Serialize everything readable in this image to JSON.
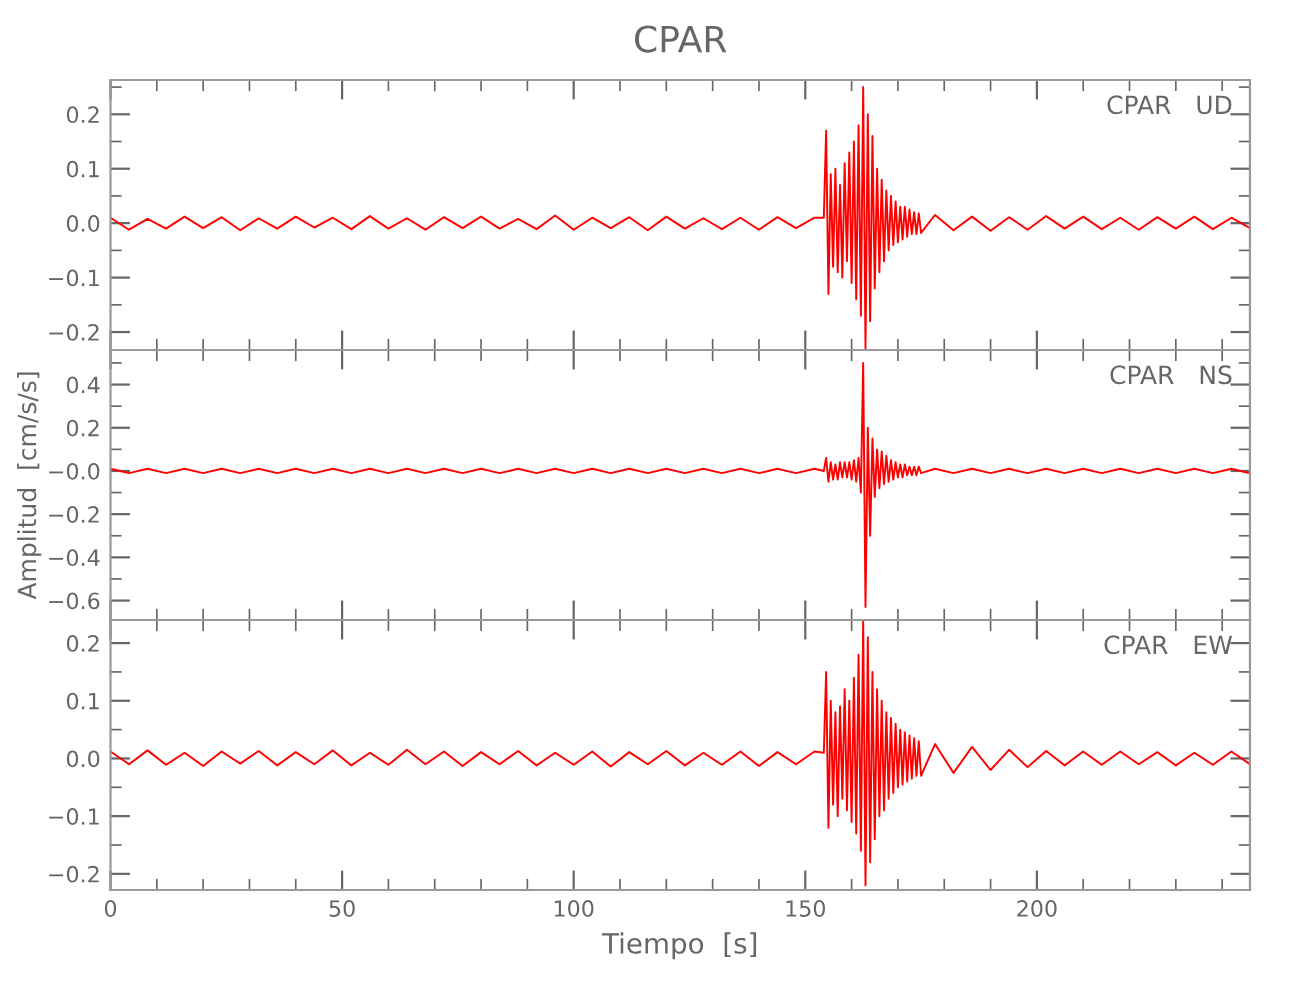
{
  "chart_data": [
    {
      "type": "line",
      "title": "CPAR",
      "annotations": [
        "CPAR   UD"
      ],
      "tick_labels": "y",
      "grid": false,
      "legend": false,
      "marker": "none",
      "line_style": "solid",
      "xlim": [
        0,
        246
      ],
      "ylim": [
        -0.233,
        0.263
      ],
      "xticks": [
        {
          "value": 0,
          "label": null
        },
        {
          "value": 10,
          "label": null
        },
        {
          "value": 20,
          "label": null
        },
        {
          "value": 30,
          "label": null
        },
        {
          "value": 40,
          "label": null
        },
        {
          "value": 50,
          "label": null
        },
        {
          "value": 60,
          "label": null
        },
        {
          "value": 70,
          "label": null
        },
        {
          "value": 80,
          "label": null
        },
        {
          "value": 90,
          "label": null
        },
        {
          "value": 100,
          "label": null
        },
        {
          "value": 110,
          "label": null
        },
        {
          "value": 120,
          "label": null
        },
        {
          "value": 130,
          "label": null
        },
        {
          "value": 140,
          "label": null
        },
        {
          "value": 150,
          "label": null
        },
        {
          "value": 160,
          "label": null
        },
        {
          "value": 170,
          "label": null
        },
        {
          "value": 180,
          "label": null
        },
        {
          "value": 190,
          "label": null
        },
        {
          "value": 200,
          "label": null
        },
        {
          "value": 210,
          "label": null
        },
        {
          "value": 220,
          "label": null
        },
        {
          "value": 230,
          "label": null
        },
        {
          "value": 240,
          "label": null
        }
      ],
      "yticks": [
        {
          "value": -0.2,
          "label": "−0.2"
        },
        {
          "value": -0.15,
          "label": null
        },
        {
          "value": -0.1,
          "label": "−0.1"
        },
        {
          "value": -0.05,
          "label": null
        },
        {
          "value": 0.0,
          "label": "0.0"
        },
        {
          "value": 0.05,
          "label": null
        },
        {
          "value": 0.1,
          "label": "0.1"
        },
        {
          "value": 0.15,
          "label": null
        },
        {
          "value": 0.2,
          "label": "0.2"
        },
        {
          "value": 0.25,
          "label": null
        }
      ],
      "series": [
        {
          "color": "#ff0000",
          "x": [
            0,
            4,
            8,
            12,
            16,
            20,
            24,
            28,
            32,
            36,
            40,
            44,
            48,
            52,
            56,
            60,
            64,
            68,
            72,
            76,
            80,
            84,
            88,
            92,
            96,
            100,
            104,
            108,
            112,
            116,
            120,
            124,
            128,
            132,
            136,
            140,
            144,
            148,
            152,
            154.0,
            154.5,
            155.0,
            155.5,
            156.0,
            156.5,
            157.0,
            157.5,
            158.0,
            158.5,
            159.0,
            159.5,
            160.0,
            160.5,
            161.0,
            161.5,
            162.0,
            162.5,
            163.0,
            163.5,
            164.0,
            164.5,
            165.0,
            165.5,
            166.0,
            166.5,
            167.0,
            167.5,
            168.0,
            168.5,
            169.0,
            169.5,
            170.0,
            170.5,
            171.0,
            171.5,
            172.0,
            172.5,
            173.0,
            173.5,
            174.0,
            174.5,
            175.0,
            178,
            182,
            186,
            190,
            194,
            198,
            202,
            206,
            210,
            214,
            218,
            222,
            226,
            230,
            234,
            238,
            242,
            246
          ],
          "values": [
            0.01,
            -0.012,
            0.008,
            -0.01,
            0.012,
            -0.009,
            0.011,
            -0.013,
            0.009,
            -0.01,
            0.012,
            -0.008,
            0.01,
            -0.011,
            0.013,
            -0.01,
            0.009,
            -0.012,
            0.011,
            -0.009,
            0.012,
            -0.01,
            0.008,
            -0.011,
            0.014,
            -0.012,
            0.01,
            -0.009,
            0.011,
            -0.013,
            0.012,
            -0.01,
            0.009,
            -0.011,
            0.01,
            -0.012,
            0.011,
            -0.009,
            0.01,
            0.01,
            0.17,
            -0.13,
            0.09,
            -0.08,
            0.1,
            -0.09,
            0.07,
            -0.1,
            0.11,
            -0.07,
            0.13,
            -0.11,
            0.15,
            -0.14,
            0.18,
            -0.17,
            0.25,
            -0.23,
            0.2,
            -0.18,
            0.16,
            -0.12,
            0.1,
            -0.09,
            0.08,
            -0.07,
            0.06,
            -0.05,
            0.05,
            -0.04,
            0.04,
            -0.035,
            0.03,
            -0.03,
            0.03,
            -0.025,
            0.025,
            -0.02,
            0.02,
            -0.02,
            0.018,
            -0.018,
            0.015,
            -0.013,
            0.012,
            -0.014,
            0.011,
            -0.012,
            0.013,
            -0.01,
            0.012,
            -0.011,
            0.01,
            -0.012,
            0.011,
            -0.01,
            0.012,
            -0.011,
            0.01,
            -0.009
          ]
        }
      ]
    },
    {
      "type": "line",
      "ylabel": "Amplitud  [cm/s/s]",
      "annotations": [
        "CPAR   NS"
      ],
      "tick_labels": "y",
      "grid": false,
      "legend": false,
      "marker": "none",
      "line_style": "solid",
      "xlim": [
        0,
        246
      ],
      "ylim": [
        -0.69,
        0.56
      ],
      "xticks": [
        {
          "value": 0,
          "label": null
        },
        {
          "value": 10,
          "label": null
        },
        {
          "value": 20,
          "label": null
        },
        {
          "value": 30,
          "label": null
        },
        {
          "value": 40,
          "label": null
        },
        {
          "value": 50,
          "label": null
        },
        {
          "value": 60,
          "label": null
        },
        {
          "value": 70,
          "label": null
        },
        {
          "value": 80,
          "label": null
        },
        {
          "value": 90,
          "label": null
        },
        {
          "value": 100,
          "label": null
        },
        {
          "value": 110,
          "label": null
        },
        {
          "value": 120,
          "label": null
        },
        {
          "value": 130,
          "label": null
        },
        {
          "value": 140,
          "label": null
        },
        {
          "value": 150,
          "label": null
        },
        {
          "value": 160,
          "label": null
        },
        {
          "value": 170,
          "label": null
        },
        {
          "value": 180,
          "label": null
        },
        {
          "value": 190,
          "label": null
        },
        {
          "value": 200,
          "label": null
        },
        {
          "value": 210,
          "label": null
        },
        {
          "value": 220,
          "label": null
        },
        {
          "value": 230,
          "label": null
        },
        {
          "value": 240,
          "label": null
        }
      ],
      "yticks": [
        {
          "value": -0.6,
          "label": "−0.6"
        },
        {
          "value": -0.5,
          "label": null
        },
        {
          "value": -0.4,
          "label": "−0.4"
        },
        {
          "value": -0.3,
          "label": null
        },
        {
          "value": -0.2,
          "label": "−0.2"
        },
        {
          "value": -0.1,
          "label": null
        },
        {
          "value": 0.0,
          "label": "−0.0"
        },
        {
          "value": 0.1,
          "label": null
        },
        {
          "value": 0.2,
          "label": "0.2"
        },
        {
          "value": 0.3,
          "label": null
        },
        {
          "value": 0.4,
          "label": "0.4"
        },
        {
          "value": 0.5,
          "label": null
        }
      ],
      "series": [
        {
          "color": "#ff0000",
          "x": [
            0,
            4,
            8,
            12,
            16,
            20,
            24,
            28,
            32,
            36,
            40,
            44,
            48,
            52,
            56,
            60,
            64,
            68,
            72,
            76,
            80,
            84,
            88,
            92,
            96,
            100,
            104,
            108,
            112,
            116,
            120,
            124,
            128,
            132,
            136,
            140,
            144,
            148,
            152,
            154.0,
            154.5,
            155.0,
            155.5,
            156.0,
            156.5,
            157.0,
            157.5,
            158.0,
            158.5,
            159.0,
            159.5,
            160.0,
            160.5,
            161.0,
            161.5,
            162.0,
            162.5,
            163.0,
            163.5,
            164.0,
            164.5,
            165.0,
            165.5,
            166.0,
            166.5,
            167.0,
            167.5,
            168.0,
            168.5,
            169.0,
            169.5,
            170.0,
            170.5,
            171.0,
            171.5,
            172.0,
            172.5,
            173.0,
            173.5,
            174.0,
            174.5,
            175.0,
            178,
            182,
            186,
            190,
            194,
            198,
            202,
            206,
            210,
            214,
            218,
            222,
            226,
            230,
            234,
            238,
            242,
            246
          ],
          "values": [
            0.01,
            -0.01,
            0.01,
            -0.01,
            0.01,
            -0.01,
            0.01,
            -0.01,
            0.01,
            -0.01,
            0.01,
            -0.01,
            0.01,
            -0.01,
            0.01,
            -0.01,
            0.01,
            -0.01,
            0.01,
            -0.01,
            0.01,
            -0.01,
            0.01,
            -0.01,
            0.01,
            -0.01,
            0.01,
            -0.01,
            0.01,
            -0.01,
            0.01,
            -0.01,
            0.01,
            -0.01,
            0.01,
            -0.01,
            0.01,
            -0.01,
            0.01,
            0.0,
            0.06,
            -0.05,
            0.04,
            -0.04,
            0.03,
            -0.04,
            0.04,
            -0.03,
            0.04,
            -0.03,
            0.04,
            -0.04,
            0.05,
            -0.05,
            0.06,
            -0.1,
            0.5,
            -0.63,
            0.2,
            -0.3,
            0.15,
            -0.12,
            0.1,
            -0.08,
            0.09,
            -0.06,
            0.07,
            -0.05,
            0.05,
            -0.04,
            0.04,
            -0.03,
            0.03,
            -0.03,
            0.03,
            -0.02,
            0.02,
            -0.02,
            0.02,
            -0.02,
            0.02,
            -0.01,
            0.01,
            -0.01,
            0.01,
            -0.01,
            0.01,
            -0.01,
            0.01,
            -0.01,
            0.01,
            -0.01,
            0.01,
            -0.01,
            0.01,
            -0.01,
            0.01,
            -0.01,
            0.01,
            -0.01
          ]
        }
      ]
    },
    {
      "type": "line",
      "xlabel": "Tiempo  [s]",
      "annotations": [
        "CPAR   EW"
      ],
      "grid": false,
      "legend": false,
      "marker": "none",
      "line_style": "solid",
      "xlim": [
        0,
        246
      ],
      "ylim": [
        -0.228,
        0.24
      ],
      "xticks": [
        {
          "value": 0,
          "label": "0"
        },
        {
          "value": 10,
          "label": null
        },
        {
          "value": 20,
          "label": null
        },
        {
          "value": 30,
          "label": null
        },
        {
          "value": 40,
          "label": null
        },
        {
          "value": 50,
          "label": "50"
        },
        {
          "value": 60,
          "label": null
        },
        {
          "value": 70,
          "label": null
        },
        {
          "value": 80,
          "label": null
        },
        {
          "value": 90,
          "label": null
        },
        {
          "value": 100,
          "label": "100"
        },
        {
          "value": 110,
          "label": null
        },
        {
          "value": 120,
          "label": null
        },
        {
          "value": 130,
          "label": null
        },
        {
          "value": 140,
          "label": null
        },
        {
          "value": 150,
          "label": "150"
        },
        {
          "value": 160,
          "label": null
        },
        {
          "value": 170,
          "label": null
        },
        {
          "value": 180,
          "label": null
        },
        {
          "value": 190,
          "label": null
        },
        {
          "value": 200,
          "label": "200"
        },
        {
          "value": 210,
          "label": null
        },
        {
          "value": 220,
          "label": null
        },
        {
          "value": 230,
          "label": null
        },
        {
          "value": 240,
          "label": null
        }
      ],
      "yticks": [
        {
          "value": -0.2,
          "label": "−0.2"
        },
        {
          "value": -0.15,
          "label": null
        },
        {
          "value": -0.1,
          "label": "−0.1"
        },
        {
          "value": -0.05,
          "label": null
        },
        {
          "value": 0.0,
          "label": "0.0"
        },
        {
          "value": 0.05,
          "label": null
        },
        {
          "value": 0.1,
          "label": "0.1"
        },
        {
          "value": 0.15,
          "label": null
        },
        {
          "value": 0.2,
          "label": "0.2"
        }
      ],
      "series": [
        {
          "color": "#ff0000",
          "x": [
            0,
            4,
            8,
            12,
            16,
            20,
            24,
            28,
            32,
            36,
            40,
            44,
            48,
            52,
            56,
            60,
            64,
            68,
            72,
            76,
            80,
            84,
            88,
            92,
            96,
            100,
            104,
            108,
            112,
            116,
            120,
            124,
            128,
            132,
            136,
            140,
            144,
            148,
            152,
            154.0,
            154.5,
            155.0,
            155.5,
            156.0,
            156.5,
            157.0,
            157.5,
            158.0,
            158.5,
            159.0,
            159.5,
            160.0,
            160.5,
            161.0,
            161.5,
            162.0,
            162.5,
            163.0,
            163.5,
            164.0,
            164.5,
            165.0,
            165.5,
            166.0,
            166.5,
            167.0,
            167.5,
            168.0,
            168.5,
            169.0,
            169.5,
            170.0,
            170.5,
            171.0,
            171.5,
            172.0,
            172.5,
            173.0,
            173.5,
            174.0,
            174.5,
            175.0,
            178,
            182,
            186,
            190,
            194,
            198,
            202,
            206,
            210,
            214,
            218,
            222,
            226,
            230,
            234,
            238,
            242,
            246
          ],
          "values": [
            0.012,
            -0.01,
            0.014,
            -0.011,
            0.01,
            -0.013,
            0.012,
            -0.009,
            0.013,
            -0.012,
            0.011,
            -0.01,
            0.014,
            -0.012,
            0.01,
            -0.011,
            0.015,
            -0.01,
            0.012,
            -0.013,
            0.011,
            -0.01,
            0.013,
            -0.012,
            0.01,
            -0.011,
            0.012,
            -0.014,
            0.011,
            -0.01,
            0.013,
            -0.012,
            0.01,
            -0.011,
            0.012,
            -0.013,
            0.011,
            -0.01,
            0.012,
            0.01,
            0.15,
            -0.12,
            0.1,
            -0.08,
            0.08,
            -0.1,
            0.09,
            -0.07,
            0.12,
            -0.09,
            0.1,
            -0.11,
            0.14,
            -0.13,
            0.18,
            -0.16,
            0.24,
            -0.22,
            0.21,
            -0.18,
            0.15,
            -0.14,
            0.12,
            -0.1,
            0.1,
            -0.09,
            0.08,
            -0.07,
            0.07,
            -0.06,
            0.06,
            -0.05,
            0.05,
            -0.045,
            0.045,
            -0.04,
            0.04,
            -0.035,
            0.035,
            -0.03,
            0.03,
            -0.03,
            0.025,
            -0.025,
            0.02,
            -0.02,
            0.015,
            -0.015,
            0.013,
            -0.012,
            0.012,
            -0.011,
            0.012,
            -0.01,
            0.011,
            -0.012,
            0.01,
            -0.011,
            0.012,
            -0.01
          ]
        }
      ]
    }
  ]
}
